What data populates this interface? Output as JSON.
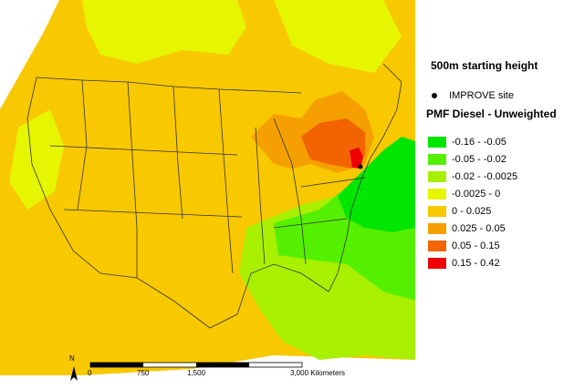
{
  "map": {
    "title": "500m starting height",
    "site_legend_label": "IMPROVE site",
    "legend_title": "PMF Diesel - Unweighted",
    "legend_classes": [
      {
        "label": "-0.16 - -0.05",
        "color": "#00e600"
      },
      {
        "label": "-0.05 - -0.02",
        "color": "#55f000"
      },
      {
        "label": "-0.02 - -0.0025",
        "color": "#a8f000"
      },
      {
        "label": "-0.0025 - 0",
        "color": "#e6f500"
      },
      {
        "label": "0 - 0.025",
        "color": "#f8c800"
      },
      {
        "label": "0.025 - 0.05",
        "color": "#f5a000"
      },
      {
        "label": "0.05 - 0.15",
        "color": "#f26400"
      },
      {
        "label": "0.15 - 0.42",
        "color": "#ee0000"
      }
    ],
    "north_label": "N",
    "scale_bar": {
      "ticks": [
        "0",
        "750",
        "1,500",
        "3,000"
      ],
      "unit": "Kilometers"
    }
  }
}
